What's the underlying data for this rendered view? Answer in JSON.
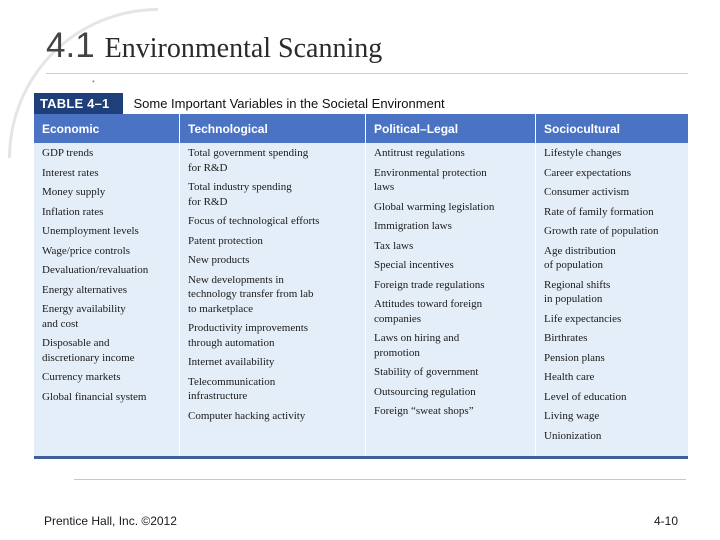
{
  "slide": {
    "number": "4.1",
    "title": "Environmental Scanning"
  },
  "table": {
    "label": "TABLE 4–1",
    "caption": "Some Important Variables in the Societal Environment",
    "columns": [
      {
        "header": "Economic",
        "items": [
          "GDP trends",
          "Interest rates",
          "Money supply",
          "Inflation rates",
          "Unemployment levels",
          "Wage/price controls",
          "Devaluation/revaluation",
          "Energy alternatives",
          "Energy availability\nand cost",
          "Disposable and\ndiscretionary income",
          "Currency markets",
          "Global financial system"
        ]
      },
      {
        "header": "Technological",
        "items": [
          "Total government spending\nfor R&D",
          "Total industry spending\nfor R&D",
          "Focus of technological efforts",
          "Patent protection",
          "New products",
          "New developments in\ntechnology transfer from lab\nto marketplace",
          "Productivity improvements\nthrough automation",
          "Internet availability",
          "Telecommunication\ninfrastructure",
          "Computer hacking activity"
        ]
      },
      {
        "header": "Political–Legal",
        "items": [
          "Antitrust regulations",
          "Environmental protection\nlaws",
          "Global warming legislation",
          "Immigration laws",
          "Tax laws",
          "Special incentives",
          "Foreign trade regulations",
          "Attitudes toward foreign\ncompanies",
          "Laws on hiring and\npromotion",
          "Stability of government",
          "Outsourcing regulation",
          "Foreign “sweat shops”"
        ]
      },
      {
        "header": "Sociocultural",
        "items": [
          "Lifestyle changes",
          "Career expectations",
          "Consumer activism",
          "Rate of family formation",
          "Growth rate of population",
          "Age distribution\nof population",
          "Regional shifts\nin population",
          "Life expectancies",
          "Birthrates",
          "Pension plans",
          "Health care",
          "Level of education",
          "Living wage",
          "Unionization"
        ]
      }
    ]
  },
  "footer": {
    "publisher": "Prentice Hall, Inc. ©2012",
    "page": "4-10"
  }
}
